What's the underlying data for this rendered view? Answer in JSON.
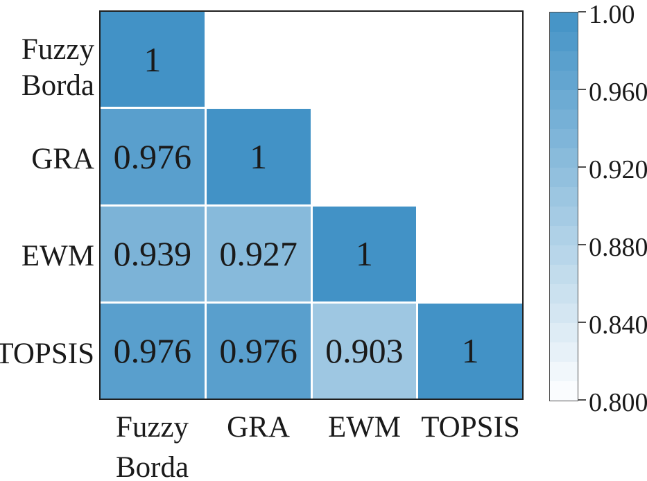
{
  "chart_data": {
    "type": "heatmap",
    "subtype": "lower-triangle-correlation-matrix",
    "title": "",
    "categories": [
      "Fuzzy Borda",
      "GRA",
      "EWM",
      "TOPSIS"
    ],
    "category_display": [
      "Fuzzy\nBorda",
      "GRA",
      "EWM",
      "TOPSIS"
    ],
    "matrix": [
      [
        1,
        null,
        null,
        null
      ],
      [
        0.976,
        1,
        null,
        null
      ],
      [
        0.939,
        0.927,
        1,
        null
      ],
      [
        0.976,
        0.976,
        0.903,
        1
      ]
    ],
    "cell_text": [
      [
        "1",
        "",
        "",
        ""
      ],
      [
        "0.976",
        "1",
        "",
        ""
      ],
      [
        "0.939",
        "0.927",
        "1",
        ""
      ],
      [
        "0.976",
        "0.976",
        "0.903",
        "1"
      ]
    ],
    "colormap": {
      "vmin": 0.8,
      "vmax": 1.0,
      "low_color": "#FFFFFF",
      "high_color": "#4292C6",
      "steps": 20
    },
    "colorbar": {
      "position": "right",
      "tick_labels": [
        "1.00",
        "0.960",
        "0.920",
        "0.880",
        "0.840",
        "0.800"
      ],
      "tick_values": [
        1.0,
        0.96,
        0.92,
        0.88,
        0.84,
        0.8
      ]
    },
    "grid": false,
    "text_color": "#1a1a1a",
    "frame_color": "#1f1f1f",
    "grid_line_color": "#FFFFFF"
  }
}
